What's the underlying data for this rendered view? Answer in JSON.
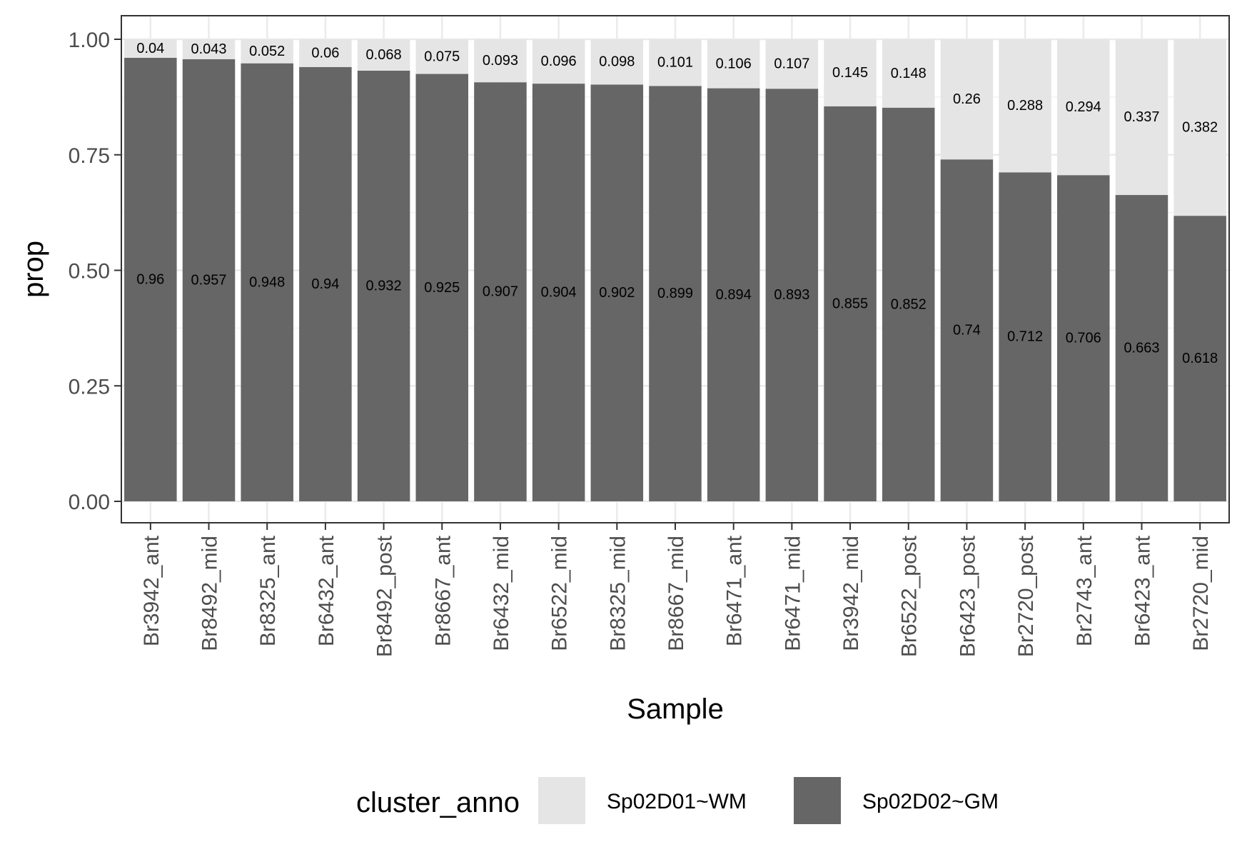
{
  "chart_data": {
    "type": "bar",
    "stacked": true,
    "xlabel": "Sample",
    "ylabel": "prop",
    "ylim": [
      0,
      1
    ],
    "yticks": [
      "0.00",
      "0.25",
      "0.50",
      "0.75",
      "1.00"
    ],
    "categories": [
      "Br3942_ant",
      "Br8492_mid",
      "Br8325_ant",
      "Br6432_ant",
      "Br8492_post",
      "Br8667_ant",
      "Br6432_mid",
      "Br6522_mid",
      "Br8325_mid",
      "Br8667_mid",
      "Br6471_ant",
      "Br6471_mid",
      "Br3942_mid",
      "Br6522_post",
      "Br6423_post",
      "Br2720_post",
      "Br2743_ant",
      "Br6423_ant",
      "Br2720_mid"
    ],
    "series": [
      {
        "name": "Sp02D01~WM",
        "color": "#e5e5e5",
        "values": [
          0.04,
          0.043,
          0.052,
          0.06,
          0.068,
          0.075,
          0.093,
          0.096,
          0.098,
          0.101,
          0.106,
          0.107,
          0.145,
          0.148,
          0.26,
          0.288,
          0.294,
          0.337,
          0.382
        ],
        "labels": [
          "0.04",
          "0.043",
          "0.052",
          "0.06",
          "0.068",
          "0.075",
          "0.093",
          "0.096",
          "0.098",
          "0.101",
          "0.106",
          "0.107",
          "0.145",
          "0.148",
          "0.26",
          "0.288",
          "0.294",
          "0.337",
          "0.382"
        ]
      },
      {
        "name": "Sp02D02~GM",
        "color": "#666666",
        "values": [
          0.96,
          0.957,
          0.948,
          0.94,
          0.932,
          0.925,
          0.907,
          0.904,
          0.902,
          0.899,
          0.894,
          0.893,
          0.855,
          0.852,
          0.74,
          0.712,
          0.706,
          0.663,
          0.618
        ],
        "labels": [
          "0.96",
          "0.957",
          "0.948",
          "0.94",
          "0.932",
          "0.925",
          "0.907",
          "0.904",
          "0.902",
          "0.899",
          "0.894",
          "0.893",
          "0.855",
          "0.852",
          "0.74",
          "0.712",
          "0.706",
          "0.663",
          "0.618"
        ]
      }
    ],
    "legend": {
      "title": "cluster_anno",
      "position": "bottom"
    },
    "grid": true
  }
}
